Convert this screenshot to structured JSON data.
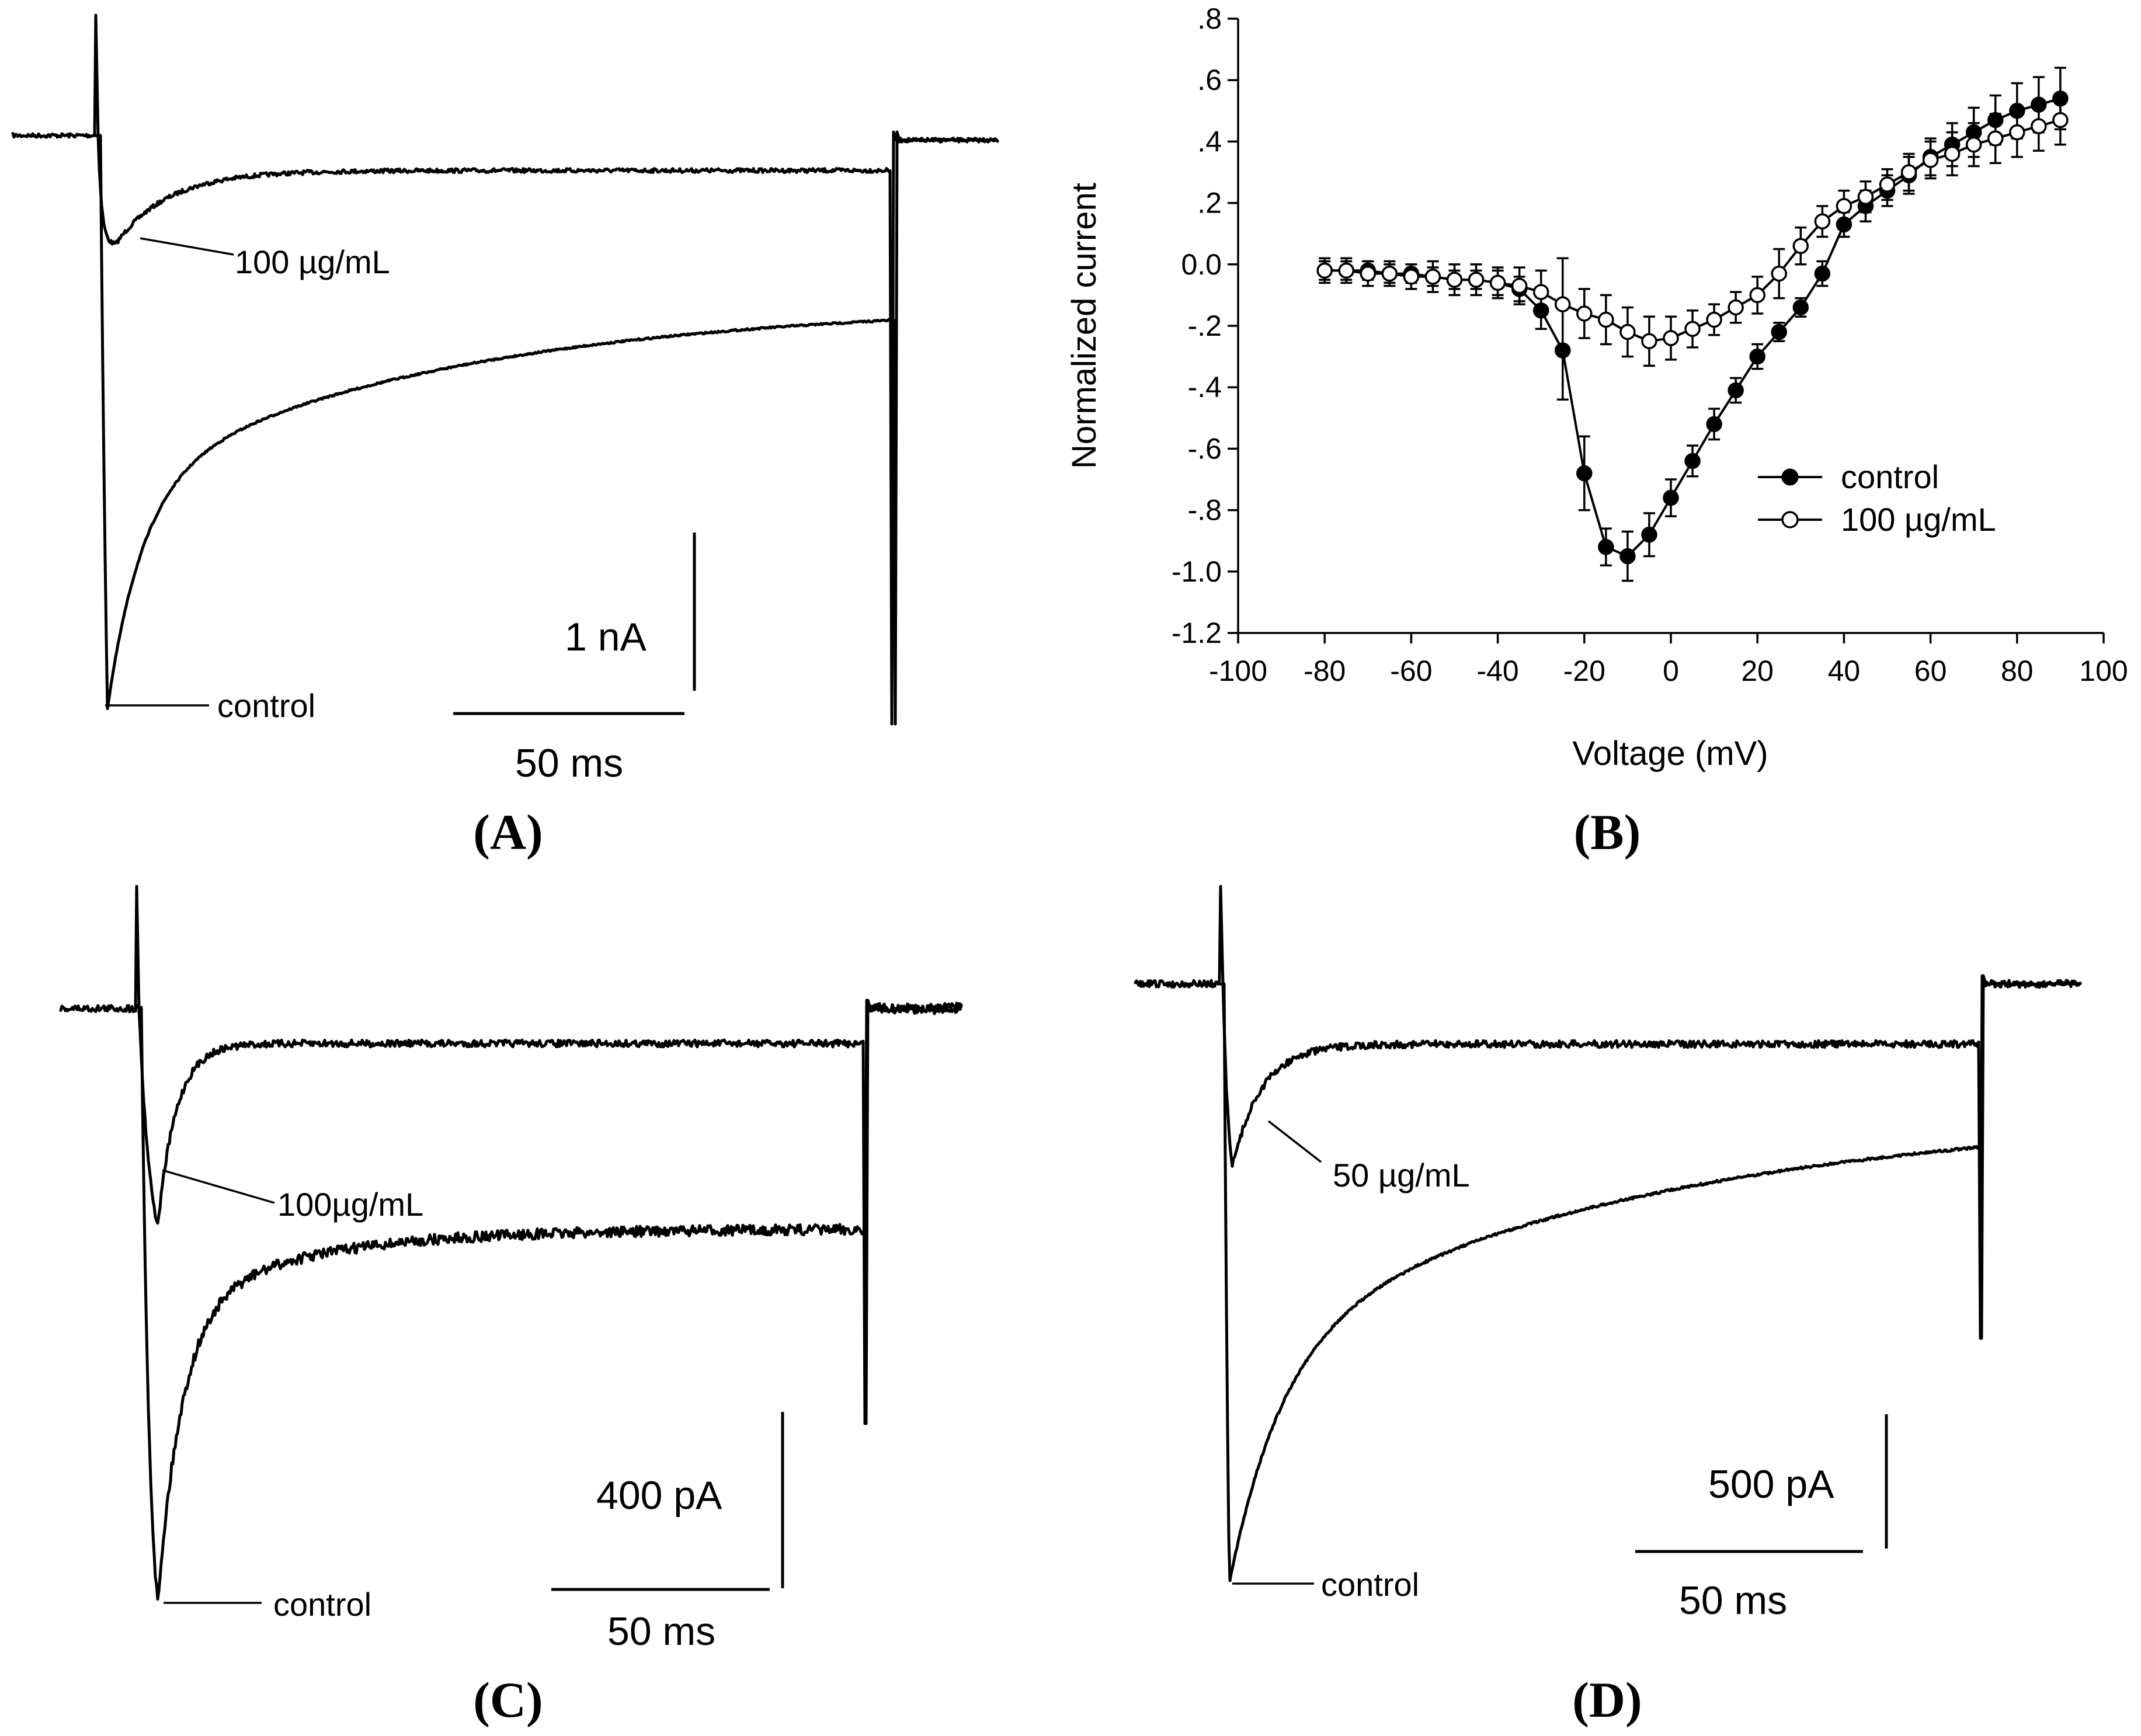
{
  "figure": {
    "panels": {
      "A": {
        "label": "(A)",
        "trace_labels": {
          "drug": "100 µg/mL",
          "control": "control"
        },
        "scale": {
          "amplitude": "1 nA",
          "time": "50 ms"
        }
      },
      "B": {
        "label": "(B)"
      },
      "C": {
        "label": "(C)",
        "trace_labels": {
          "drug": "100µg/mL",
          "control": "control"
        },
        "scale": {
          "amplitude": "400 pA",
          "time": "50 ms"
        }
      },
      "D": {
        "label": "(D)",
        "trace_labels": {
          "drug": "50 µg/mL",
          "control": "control"
        },
        "scale": {
          "amplitude": "500 pA",
          "time": "50 ms"
        }
      }
    }
  },
  "chart_data": [
    {
      "panel": "B",
      "type": "line",
      "title": "",
      "xlabel": "Voltage (mV)",
      "ylabel": "Normalized current",
      "xlim": [
        -100,
        100
      ],
      "ylim": [
        -1.2,
        0.8
      ],
      "x_ticks": [
        -100,
        -80,
        -60,
        -40,
        -20,
        0,
        20,
        40,
        60,
        80,
        100
      ],
      "x_tick_labels": [
        "-100",
        "-80",
        "-60",
        "-40",
        "-20",
        "0",
        "20",
        "40",
        "60",
        "80",
        "100"
      ],
      "y_ticks": [
        -1.2,
        -1.0,
        -0.8,
        -0.6,
        -0.4,
        -0.2,
        0.0,
        0.2,
        0.4,
        0.6,
        0.8
      ],
      "y_tick_labels": [
        "-1.2",
        "-1.0",
        "-.8",
        "-.6",
        "-.4",
        "-.2",
        "0.0",
        ".2",
        ".4",
        ".6",
        ".8"
      ],
      "legend_position": "lower-right",
      "series": [
        {
          "name": "control",
          "marker": "filled-circle",
          "x": [
            -80,
            -75,
            -70,
            -65,
            -60,
            -55,
            -50,
            -45,
            -40,
            -35,
            -30,
            -25,
            -20,
            -15,
            -10,
            -5,
            0,
            5,
            10,
            15,
            20,
            25,
            30,
            35,
            40,
            45,
            50,
            55,
            60,
            65,
            70,
            75,
            80,
            85,
            90
          ],
          "y": [
            -0.02,
            -0.02,
            -0.02,
            -0.03,
            -0.03,
            -0.04,
            -0.05,
            -0.05,
            -0.06,
            -0.08,
            -0.15,
            -0.28,
            -0.68,
            -0.92,
            -0.95,
            -0.88,
            -0.76,
            -0.64,
            -0.52,
            -0.41,
            -0.3,
            -0.22,
            -0.14,
            -0.03,
            0.13,
            0.19,
            0.24,
            0.29,
            0.35,
            0.39,
            0.43,
            0.47,
            0.5,
            0.52,
            0.54
          ],
          "err": [
            0.03,
            0.03,
            0.03,
            0.03,
            0.03,
            0.03,
            0.03,
            0.03,
            0.04,
            0.04,
            0.06,
            0.16,
            0.12,
            0.06,
            0.08,
            0.07,
            0.06,
            0.05,
            0.05,
            0.04,
            0.04,
            0.03,
            0.03,
            0.04,
            0.04,
            0.05,
            0.05,
            0.06,
            0.06,
            0.07,
            0.08,
            0.08,
            0.09,
            0.09,
            0.1
          ]
        },
        {
          "name": "100 µg/mL",
          "marker": "open-circle",
          "x": [
            -80,
            -75,
            -70,
            -65,
            -60,
            -55,
            -50,
            -45,
            -40,
            -35,
            -30,
            -25,
            -20,
            -15,
            -10,
            -5,
            0,
            5,
            10,
            15,
            20,
            25,
            30,
            35,
            40,
            45,
            50,
            55,
            60,
            65,
            70,
            75,
            80,
            85,
            90
          ],
          "y": [
            -0.02,
            -0.02,
            -0.03,
            -0.03,
            -0.04,
            -0.04,
            -0.05,
            -0.05,
            -0.06,
            -0.07,
            -0.09,
            -0.13,
            -0.16,
            -0.18,
            -0.22,
            -0.25,
            -0.24,
            -0.21,
            -0.18,
            -0.14,
            -0.1,
            -0.03,
            0.06,
            0.14,
            0.19,
            0.22,
            0.26,
            0.3,
            0.34,
            0.36,
            0.39,
            0.41,
            0.43,
            0.45,
            0.47
          ],
          "err": [
            0.04,
            0.04,
            0.04,
            0.04,
            0.04,
            0.05,
            0.05,
            0.05,
            0.05,
            0.06,
            0.07,
            0.15,
            0.08,
            0.08,
            0.08,
            0.08,
            0.07,
            0.06,
            0.05,
            0.05,
            0.06,
            0.08,
            0.06,
            0.05,
            0.05,
            0.05,
            0.05,
            0.06,
            0.06,
            0.07,
            0.07,
            0.08,
            0.08,
            0.08,
            0.08
          ]
        }
      ]
    }
  ]
}
